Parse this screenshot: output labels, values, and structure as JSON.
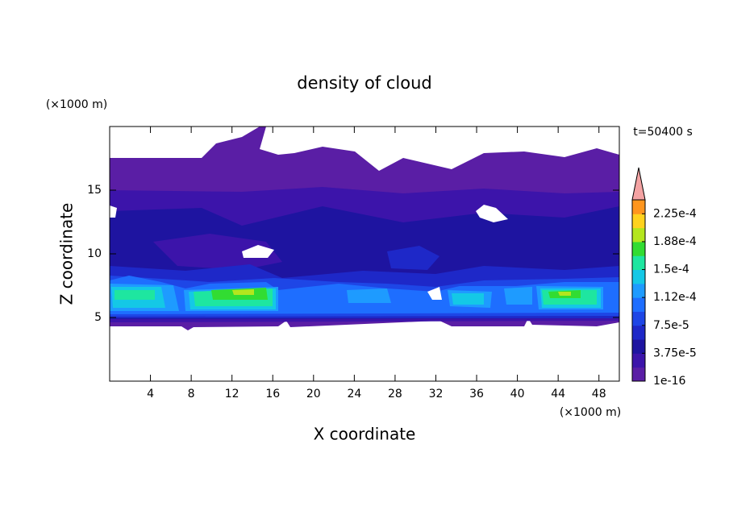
{
  "chart_data": {
    "type": "contour",
    "title": "density of cloud",
    "xlabel": "X coordinate",
    "ylabel": "Z coordinate",
    "xunit": "(×1000 m)",
    "yunit": "(×1000 m)",
    "annotation": "t=50400 s",
    "xlim": [
      0,
      50
    ],
    "ylim": [
      0,
      20
    ],
    "xticks": [
      4,
      8,
      12,
      16,
      20,
      24,
      28,
      32,
      36,
      40,
      44,
      48
    ],
    "yticks": [
      5,
      10,
      15
    ],
    "colorbar": {
      "clim": [
        1e-16,
        0.00024375
      ],
      "colors": [
        "#5a1ea5",
        "#3c14aa",
        "#1e14a0",
        "#1e28c8",
        "#1e46e6",
        "#1e6eff",
        "#1e9bff",
        "#14c8e6",
        "#1ee6a0",
        "#32dc32",
        "#b4e61e",
        "#ffd21e",
        "#ff961e"
      ],
      "extend_color": "#f4a3a3",
      "ticks": [
        {
          "value": 1e-16,
          "label": "1e-16"
        },
        {
          "value": 3.75e-05,
          "label": "3.75e-5"
        },
        {
          "value": 7.5e-05,
          "label": "7.5e-5"
        },
        {
          "value": 0.0001125,
          "label": "1.12e-4"
        },
        {
          "value": 0.00015,
          "label": "1.5e-4"
        },
        {
          "value": 0.0001875,
          "label": "1.88e-4"
        },
        {
          "value": 0.000225,
          "label": "2.25e-4"
        }
      ]
    }
  }
}
